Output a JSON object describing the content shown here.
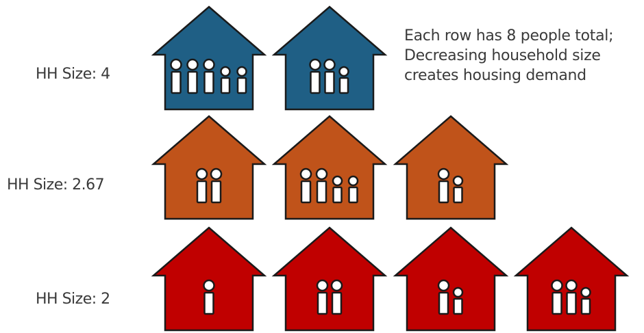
{
  "caption": {
    "line1": "Each row has 8 people total;",
    "line2": "Decreasing household size",
    "line3": "creates housing demand"
  },
  "rows": [
    {
      "label": "HH Size: 4",
      "color": "#1f5f85",
      "houses": [
        {
          "people": [
            "adult",
            "adult",
            "adult",
            "child",
            "child"
          ]
        },
        {
          "people": [
            "adult",
            "adult",
            "child"
          ]
        }
      ]
    },
    {
      "label": "HH Size: 2.67",
      "color": "#c0531a",
      "houses": [
        {
          "people": [
            "adult",
            "adult"
          ]
        },
        {
          "people": [
            "adult",
            "adult",
            "child",
            "child"
          ]
        },
        {
          "people": [
            "adult",
            "child"
          ]
        }
      ]
    },
    {
      "label": "HH Size: 2",
      "color": "#c00000",
      "houses": [
        {
          "people": [
            "adult"
          ]
        },
        {
          "people": [
            "adult",
            "adult"
          ]
        },
        {
          "people": [
            "adult",
            "child"
          ]
        },
        {
          "people": [
            "adult",
            "adult",
            "child"
          ]
        }
      ]
    }
  ]
}
